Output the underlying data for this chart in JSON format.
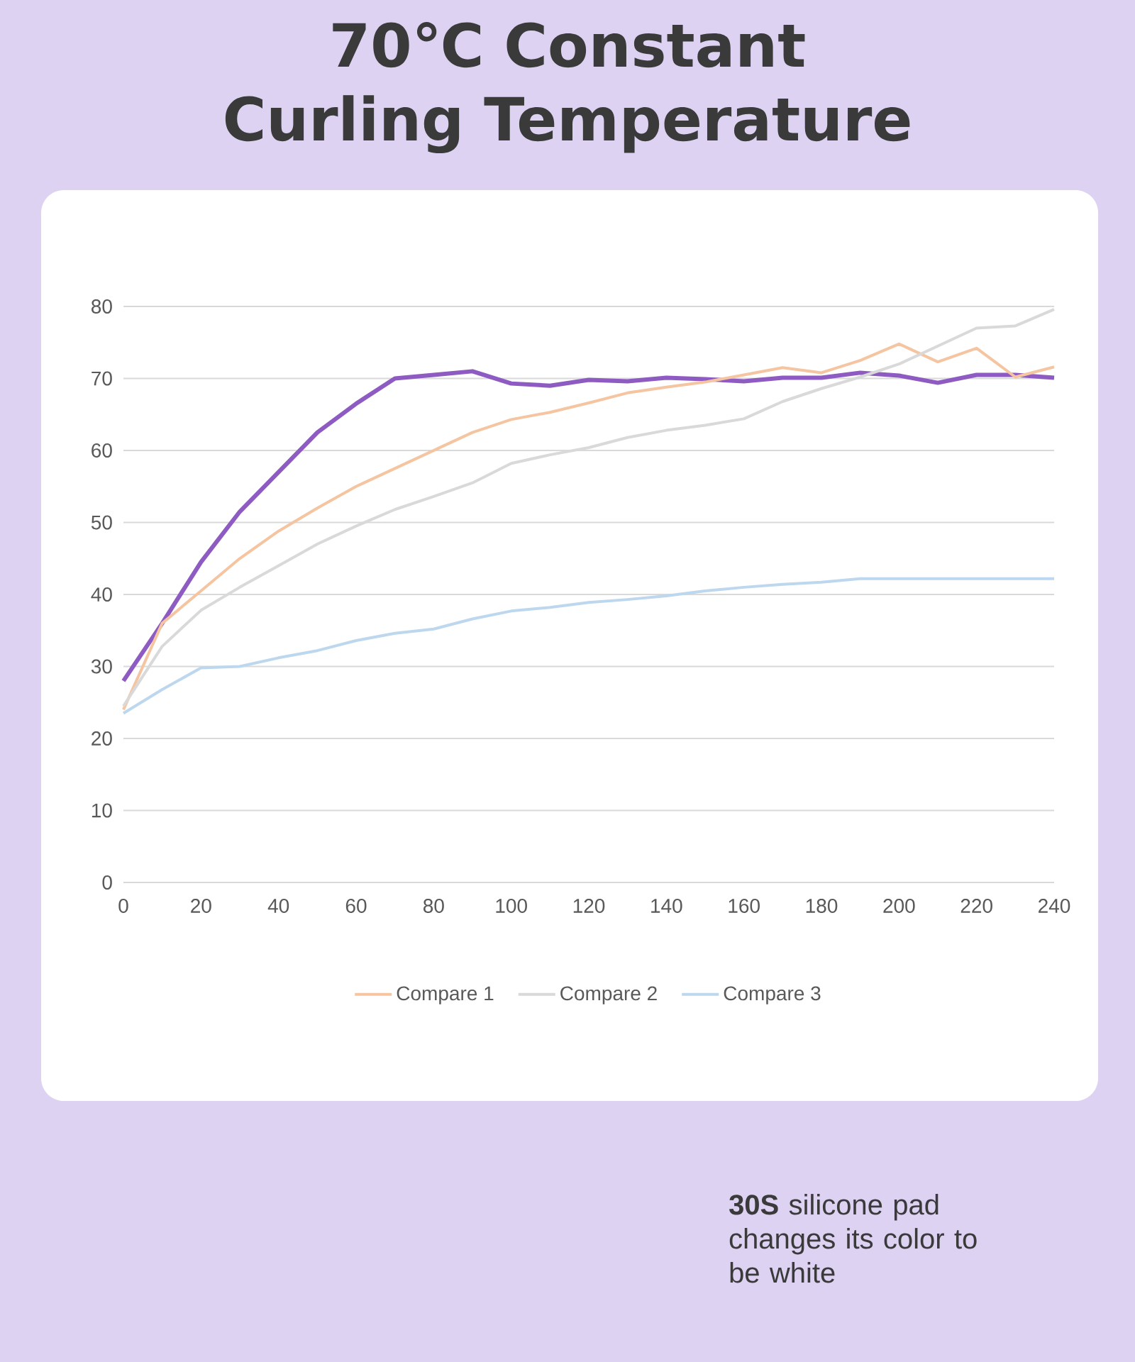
{
  "chart_data": {
    "type": "line",
    "title": "70℃  Constant Curling Temperature",
    "x": [
      0,
      10,
      20,
      30,
      40,
      50,
      60,
      70,
      80,
      90,
      100,
      110,
      120,
      130,
      140,
      150,
      160,
      170,
      180,
      190,
      200,
      210,
      220,
      230,
      240
    ],
    "series": [
      {
        "color": "#8e5bc2",
        "values": [
          28,
          36,
          44.5,
          51.5,
          57,
          62.5,
          66.5,
          70,
          70.5,
          71,
          69.3,
          69,
          69.8,
          69.6,
          70.1,
          69.9,
          69.6,
          70.1,
          70.1,
          70.8,
          70.4,
          69.4,
          70.5,
          70.5,
          70.1
        ]
      },
      {
        "name": "Compare 1",
        "color": "#f5c4a0",
        "values": [
          24,
          36,
          40.5,
          45,
          48.8,
          52,
          55,
          57.5,
          60,
          62.5,
          64.3,
          65.3,
          66.6,
          68,
          68.8,
          69.5,
          70.5,
          71.5,
          70.8,
          72.5,
          74.8,
          72.3,
          74.2,
          70.2,
          71.6
        ]
      },
      {
        "name": "Compare 2",
        "color": "#d9d9d9",
        "values": [
          24.5,
          32.8,
          37.8,
          41,
          44,
          47,
          49.5,
          51.8,
          53.6,
          55.5,
          58.2,
          59.4,
          60.4,
          61.8,
          62.8,
          63.5,
          64.4,
          66.8,
          68.6,
          70.2,
          72,
          74.5,
          77,
          77.3,
          79.6
        ]
      },
      {
        "name": "Compare 3",
        "color": "#bdd7ee",
        "values": [
          23.5,
          26.8,
          29.8,
          30,
          31.2,
          32.2,
          33.6,
          34.6,
          35.2,
          36.6,
          37.7,
          38.2,
          38.9,
          39.3,
          39.8,
          40.5,
          41,
          41.4,
          41.7,
          42.2,
          42.2,
          42.2,
          42.2,
          42.2,
          42.2
        ]
      }
    ],
    "xlim": [
      0,
      240
    ],
    "xticks": [
      0,
      20,
      40,
      60,
      80,
      100,
      120,
      140,
      160,
      180,
      200,
      220,
      240
    ],
    "ylim": [
      0,
      80
    ],
    "yticks": [
      0,
      10,
      20,
      30,
      40,
      50,
      60,
      70,
      80
    ],
    "grid": "y",
    "legend": "bottom",
    "marker": "none",
    "line_style": "solid",
    "annotations": [
      "**30S** silicone pad changes its color to be white"
    ]
  }
}
